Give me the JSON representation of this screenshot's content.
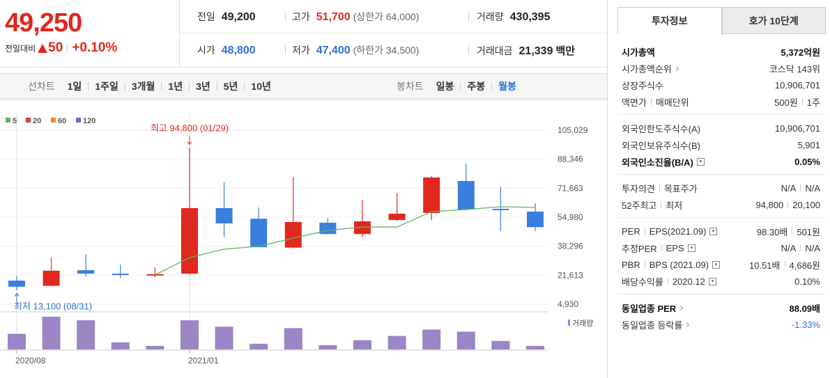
{
  "quote": {
    "price": "49,250",
    "change_label": "전일대비",
    "change": "50",
    "change_pct": "+0.10%",
    "color": "#e0281f"
  },
  "summary": {
    "rows": [
      [
        {
          "label": "전일",
          "value": "49,200"
        },
        {
          "label": "고가",
          "value": "51,700",
          "note": "(상한가 64,000)",
          "color": "#e0281f"
        },
        {
          "label": "거래량",
          "value": "430,395"
        }
      ],
      [
        {
          "label": "시가",
          "value": "48,800",
          "color": "#2f6fd8"
        },
        {
          "label": "저가",
          "value": "47,400",
          "note": "(하한가 34,500)",
          "color": "#2f6fd8"
        },
        {
          "label": "거래대금",
          "value": "21,339",
          "unit": "백만"
        }
      ]
    ]
  },
  "toolbar": {
    "line_label": "선차트",
    "line_periods": [
      "1일",
      "1주일",
      "3개월",
      "1년",
      "3년",
      "5년",
      "10년"
    ],
    "candle_label": "봉차트",
    "candle_periods": [
      "일봉",
      "주봉",
      "월봉"
    ],
    "active_candle_index": 2,
    "active_color": "#2f6fd8"
  },
  "chart_data": {
    "type": "candlestick",
    "categories": [
      "2020/08",
      null,
      null,
      null,
      null,
      "2021/01",
      null,
      null,
      null,
      null,
      null,
      null,
      null,
      null,
      null,
      null
    ],
    "open": [
      18500,
      15500,
      24500,
      22500,
      21400,
      22500,
      60200,
      54100,
      37500,
      51800,
      45300,
      53400,
      57400,
      75800,
      59800,
      58200
    ],
    "high": [
      21000,
      31800,
      33700,
      27700,
      26100,
      94800,
      75000,
      60600,
      78200,
      54500,
      65000,
      69000,
      78600,
      85800,
      72600,
      63000
    ],
    "low": [
      13100,
      15000,
      20900,
      20100,
      20500,
      22000,
      43700,
      37700,
      37000,
      45000,
      43500,
      53000,
      53400,
      59000,
      46900,
      46900
    ],
    "close": [
      15000,
      24200,
      22500,
      21700,
      22200,
      60200,
      51400,
      37700,
      52200,
      45300,
      52600,
      57000,
      77800,
      59400,
      59000,
      49250
    ],
    "up_color": "#e0281f",
    "down_color": "#3a7fdd",
    "series": [
      {
        "name": "5",
        "color": "#5cb85c",
        "values": [
          null,
          null,
          null,
          null,
          21800,
          31700,
          36600,
          38200,
          42900,
          47400,
          49300,
          49300,
          58200,
          59400,
          61000,
          60600
        ]
      },
      {
        "name": "20",
        "color": "#e33d3d",
        "values": [
          null,
          null,
          null,
          null,
          null,
          null,
          null,
          null,
          null,
          null,
          null,
          null,
          null,
          null,
          null,
          null
        ]
      },
      {
        "name": "60",
        "color": "#f08c1e",
        "values": [
          null,
          null,
          null,
          null,
          null,
          null,
          null,
          null,
          null,
          null,
          null,
          null,
          null,
          null,
          null,
          null
        ]
      },
      {
        "name": "120",
        "color": "#8a63c7",
        "values": [
          null,
          null,
          null,
          null,
          null,
          null,
          null,
          null,
          null,
          null,
          null,
          null,
          null,
          null,
          null,
          null
        ]
      }
    ],
    "volume": {
      "name": "거래량",
      "color": "#9b85c4",
      "values": [
        22,
        46,
        41,
        10,
        5,
        41,
        32,
        8,
        30,
        6,
        13,
        19,
        28,
        25,
        12,
        5
      ]
    },
    "ylim": [
      4930,
      105029
    ],
    "yticks": [
      {
        "value": 105029,
        "label": "105,029"
      },
      {
        "value": 88346,
        "label": "88,346"
      },
      {
        "value": 71663,
        "label": "71,663"
      },
      {
        "value": 54980,
        "label": "54,980"
      },
      {
        "value": 38296,
        "label": "38,296"
      },
      {
        "value": 21613,
        "label": "21,613"
      },
      {
        "value": 4930,
        "label": "4,930"
      }
    ],
    "grid": true,
    "annotations": [
      {
        "text": "최고 94,800 (01/29)",
        "color": "#e0281f"
      },
      {
        "text": "최저 13,100 (08/31)",
        "color": "#2f6fd8"
      }
    ]
  },
  "side": {
    "tabs": [
      "투자정보",
      "호가 10단계"
    ],
    "groups": [
      [
        {
          "label": [
            "시가총액"
          ],
          "value": [
            "5,372억원"
          ],
          "bold": true
        },
        {
          "label": [
            "시가총액순위"
          ],
          "value": [
            "코스닥 143위"
          ],
          "link": true
        },
        {
          "label": [
            "상장주식수"
          ],
          "value": [
            "10,906,701"
          ]
        },
        {
          "label": [
            "액면가",
            "매매단위"
          ],
          "value": [
            "500원",
            "1주"
          ]
        }
      ],
      [
        {
          "label": [
            "외국인한도주식수(A)"
          ],
          "value": [
            "10,906,701"
          ]
        },
        {
          "label": [
            "외국인보유주식수(B)"
          ],
          "value": [
            "5,901"
          ]
        },
        {
          "label": [
            "외국인소진율(B/A)"
          ],
          "value": [
            "0.05%"
          ],
          "bold": true,
          "help": true
        }
      ],
      [
        {
          "label": [
            "투자의견",
            "목표주가"
          ],
          "value": [
            "N/A",
            "N/A"
          ]
        },
        {
          "label": [
            "52주최고",
            "최저"
          ],
          "value": [
            "94,800",
            "20,100"
          ]
        }
      ],
      [
        {
          "label": [
            "PER",
            "EPS(2021.09)"
          ],
          "value": [
            "98.30배",
            "501원"
          ],
          "help": true
        },
        {
          "label": [
            "추정PER",
            "EPS"
          ],
          "value": [
            "N/A",
            "N/A"
          ],
          "help": true
        },
        {
          "label": [
            "PBR",
            "BPS (2021.09)"
          ],
          "value": [
            "10.51배",
            "4,686원"
          ],
          "help": true
        },
        {
          "label": [
            "배당수익률",
            "2020.12"
          ],
          "value": [
            "0.10%"
          ],
          "help": true
        }
      ],
      [
        {
          "label": [
            "동일업종 PER"
          ],
          "value": [
            "88.09배"
          ],
          "bold": true,
          "link": true
        },
        {
          "label": [
            "동일업종 등락률"
          ],
          "value": [
            "-1.33%"
          ],
          "link": true,
          "value_color": "#2f6fd8"
        }
      ]
    ]
  }
}
